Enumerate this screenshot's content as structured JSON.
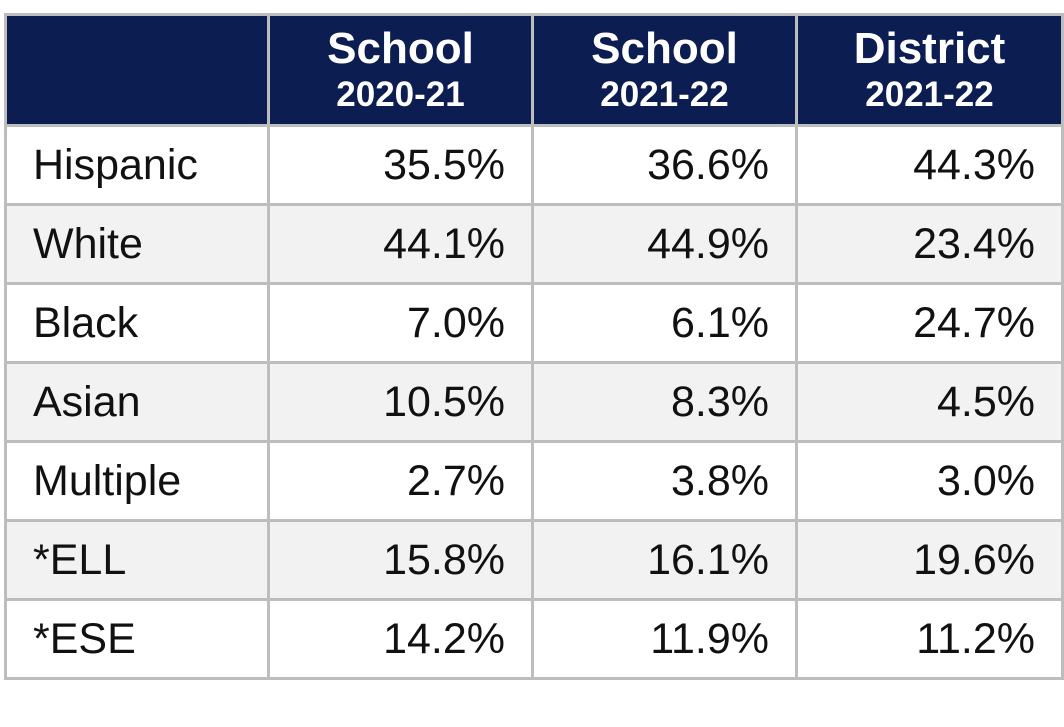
{
  "table": {
    "header": [
      {
        "line1": "School",
        "line2": "2020-21"
      },
      {
        "line1": "School",
        "line2": "2021-22"
      },
      {
        "line1": "District",
        "line2": "2021-22"
      }
    ],
    "rows": [
      [
        "Hispanic",
        "35.5%",
        "36.6%",
        "44.3%"
      ],
      [
        "White",
        "44.1%",
        "44.9%",
        "23.4%"
      ],
      [
        "Black",
        "7.0%",
        "6.1%",
        "24.7%"
      ],
      [
        "Asian",
        "10.5%",
        "8.3%",
        "4.5%"
      ],
      [
        "Multiple",
        "2.7%",
        "3.8%",
        "3.0%"
      ],
      [
        "*ELL",
        "15.8%",
        "16.1%",
        "19.6%"
      ],
      [
        "*ESE",
        "14.2%",
        "11.9%",
        "11.2%"
      ]
    ]
  }
}
